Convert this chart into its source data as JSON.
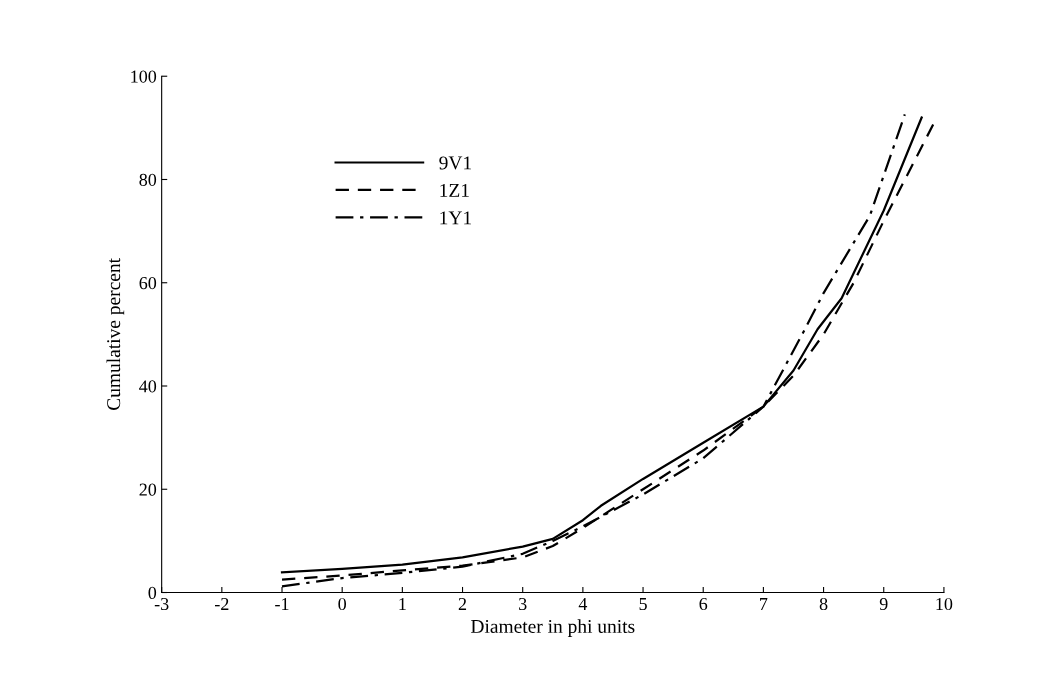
{
  "chart_data": {
    "type": "line",
    "xlabel": "Diameter in phi units",
    "ylabel": "Cumulative percent",
    "xlim": [
      -3,
      10
    ],
    "xticks": [
      -3,
      -2,
      -1,
      0,
      1,
      2,
      3,
      4,
      5,
      6,
      7,
      8,
      9,
      10
    ],
    "ylim": [
      0,
      100
    ],
    "yticks": [
      0,
      20,
      40,
      60,
      80,
      100
    ],
    "grid": false,
    "legend": "top left",
    "series": [
      {
        "name": "9V1",
        "color": "#000000",
        "line_style": "solid",
        "x": [
          -1,
          0,
          1,
          2,
          3,
          3.5,
          4,
          4.3,
          5,
          6,
          7,
          7.5,
          7.9,
          8.3,
          9,
          9.63
        ],
        "values": [
          3.9,
          4.6,
          5.4,
          6.8,
          8.9,
          10.4,
          14,
          16.8,
          22,
          29,
          36,
          43,
          51,
          57,
          74,
          92
        ]
      },
      {
        "name": "1Z1",
        "color": "#000000",
        "line_style": "dashed",
        "x": [
          -1,
          0,
          1,
          2,
          3,
          3.5,
          4,
          5,
          6,
          7,
          7.5,
          8,
          8.5,
          9,
          9.85
        ],
        "values": [
          2.5,
          3.3,
          4.3,
          5.2,
          6.8,
          9,
          12.5,
          20,
          27.5,
          36,
          42,
          50,
          60,
          72,
          91.3
        ]
      },
      {
        "name": "1Y1",
        "color": "#000000",
        "line_style": "dashdot",
        "x": [
          -1,
          0,
          1,
          2,
          3,
          3.5,
          4,
          5,
          6,
          7,
          7.69,
          8,
          8.77,
          9.35
        ],
        "values": [
          1.2,
          2.8,
          3.8,
          5,
          7.5,
          10,
          12.8,
          19,
          26,
          36,
          51,
          58,
          73,
          92.6
        ]
      }
    ]
  }
}
